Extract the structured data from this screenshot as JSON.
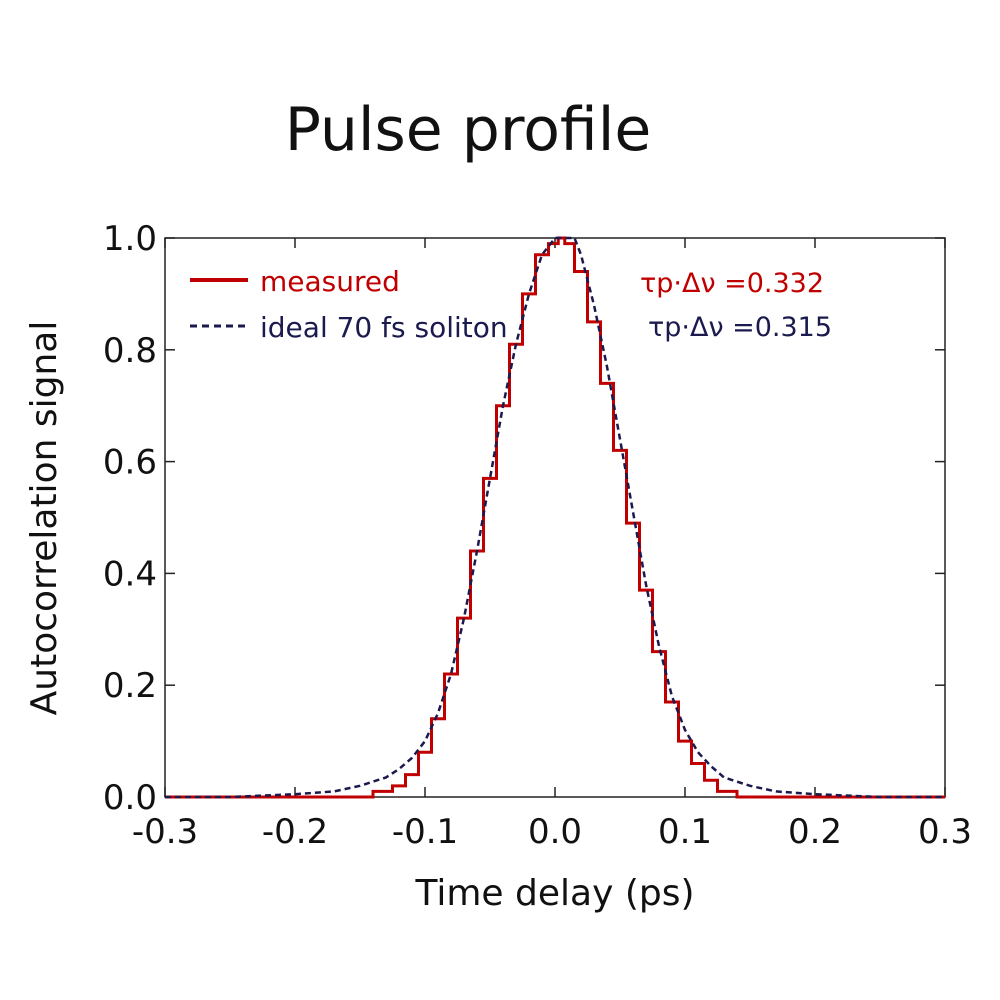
{
  "chart_data": {
    "type": "line",
    "title": "Pulse profile",
    "xlabel": "Time delay (ps)",
    "ylabel": "Autocorrelation signal",
    "xlim": [
      -0.3,
      0.3
    ],
    "ylim": [
      0.0,
      1.0
    ],
    "xticks": [
      "-0.3",
      "-0.2",
      "-0.1",
      "0.0",
      "0.1",
      "0.2",
      "0.3"
    ],
    "yticks": [
      "0.0",
      "0.2",
      "0.4",
      "0.6",
      "0.8",
      "1.0"
    ],
    "grid": false,
    "legend_position": "top-left",
    "series": [
      {
        "name": "measured",
        "style": "solid-step",
        "color": "#c00000",
        "x": [
          -0.3,
          -0.2,
          -0.15,
          -0.13,
          -0.12,
          -0.11,
          -0.1,
          -0.09,
          -0.08,
          -0.07,
          -0.06,
          -0.05,
          -0.04,
          -0.03,
          -0.02,
          -0.01,
          0.0,
          0.005,
          0.01,
          0.02,
          0.03,
          0.04,
          0.05,
          0.06,
          0.07,
          0.08,
          0.09,
          0.1,
          0.11,
          0.12,
          0.13,
          0.15,
          0.2,
          0.3
        ],
        "y": [
          0.0,
          0.0,
          0.0,
          0.01,
          0.02,
          0.04,
          0.08,
          0.14,
          0.22,
          0.32,
          0.44,
          0.57,
          0.7,
          0.81,
          0.9,
          0.97,
          0.99,
          1.0,
          0.99,
          0.94,
          0.85,
          0.74,
          0.62,
          0.49,
          0.37,
          0.26,
          0.17,
          0.1,
          0.06,
          0.03,
          0.01,
          0.0,
          0.0,
          0.0
        ]
      },
      {
        "name": "ideal 70 fs soliton",
        "style": "dashed",
        "color": "#1a1a4e",
        "x": [
          -0.3,
          -0.25,
          -0.2,
          -0.17,
          -0.15,
          -0.13,
          -0.12,
          -0.11,
          -0.1,
          -0.09,
          -0.08,
          -0.07,
          -0.06,
          -0.05,
          -0.04,
          -0.03,
          -0.02,
          -0.01,
          0.0,
          0.005,
          0.01,
          0.015,
          0.02,
          0.03,
          0.04,
          0.05,
          0.06,
          0.07,
          0.08,
          0.09,
          0.1,
          0.11,
          0.12,
          0.13,
          0.15,
          0.17,
          0.2,
          0.25,
          0.3
        ],
        "y": [
          0.0,
          0.0,
          0.005,
          0.01,
          0.02,
          0.035,
          0.05,
          0.07,
          0.1,
          0.15,
          0.22,
          0.32,
          0.44,
          0.57,
          0.7,
          0.81,
          0.9,
          0.97,
          1.0,
          1.0,
          1.0,
          1.0,
          0.97,
          0.88,
          0.77,
          0.64,
          0.51,
          0.38,
          0.27,
          0.18,
          0.12,
          0.08,
          0.055,
          0.035,
          0.02,
          0.01,
          0.005,
          0.0,
          0.0
        ]
      }
    ],
    "annotations": [
      {
        "text": "τp·Δν =0.332",
        "color": "#c00000"
      },
      {
        "text": "τp·Δν =0.315",
        "color": "#1a1a4e"
      }
    ]
  }
}
